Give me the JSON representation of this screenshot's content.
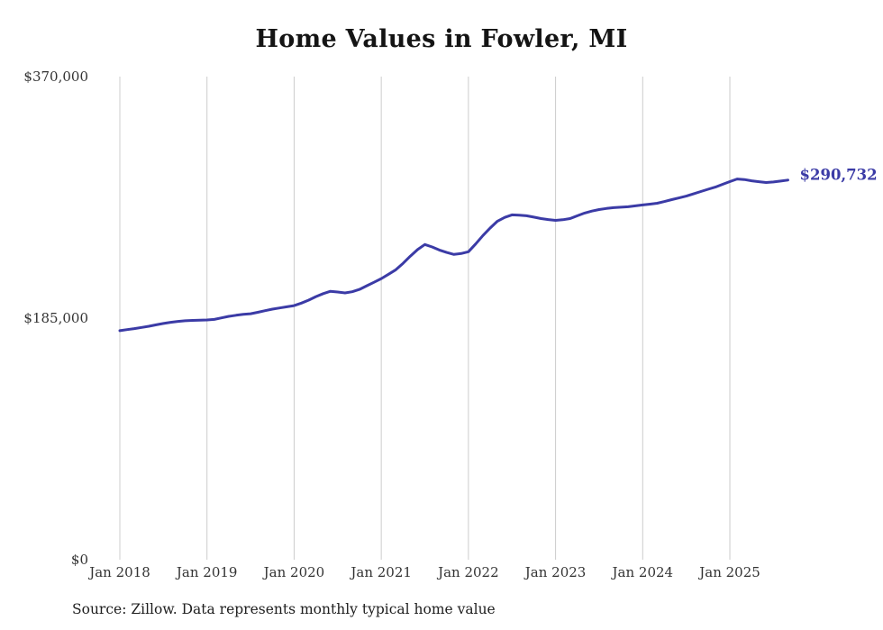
{
  "title": "Home Values in Fowler, MI",
  "source_note": "Source: Zillow. Data represents monthly typical home value",
  "end_label": "$290,732",
  "colors": {
    "line": "#3b3ba6",
    "grid": "#cccccc",
    "axis_text": "#333333",
    "title_text": "#141414"
  },
  "chart_data": {
    "type": "line",
    "title": "Home Values in Fowler, MI",
    "x_start": "2018-01",
    "x_end": "2025-09",
    "x_unit": "month",
    "ylim": [
      0,
      370000
    ],
    "grid": "vertical-only",
    "y_ticks": [
      {
        "value": 0,
        "label": "$0"
      },
      {
        "value": 185000,
        "label": "$185,000"
      },
      {
        "value": 370000,
        "label": "$370,000"
      }
    ],
    "x_ticks": [
      {
        "month_index": 0,
        "label": "Jan 2018"
      },
      {
        "month_index": 12,
        "label": "Jan 2019"
      },
      {
        "month_index": 24,
        "label": "Jan 2020"
      },
      {
        "month_index": 36,
        "label": "Jan 2021"
      },
      {
        "month_index": 48,
        "label": "Jan 2022"
      },
      {
        "month_index": 60,
        "label": "Jan 2023"
      },
      {
        "month_index": 72,
        "label": "Jan 2024"
      },
      {
        "month_index": 84,
        "label": "Jan 2025"
      }
    ],
    "series": [
      {
        "name": "Typical home value",
        "values": [
          175400,
          176200,
          177000,
          177900,
          178800,
          179900,
          180900,
          181800,
          182500,
          183000,
          183300,
          183400,
          183600,
          184000,
          185200,
          186400,
          187200,
          187900,
          188400,
          189500,
          190700,
          191900,
          192800,
          193700,
          194600,
          196500,
          198800,
          201500,
          203800,
          205600,
          205000,
          204300,
          205200,
          207000,
          209800,
          212500,
          215300,
          218600,
          222100,
          227000,
          232500,
          237500,
          241400,
          239500,
          237200,
          235300,
          233800,
          234500,
          235900,
          241800,
          248300,
          254000,
          259300,
          262200,
          264100,
          263900,
          263400,
          262400,
          261300,
          260500,
          259900,
          260400,
          261300,
          263400,
          265500,
          267000,
          268200,
          269000,
          269600,
          270000,
          270300,
          271000,
          271700,
          272300,
          273000,
          274300,
          275800,
          277100,
          278500,
          280200,
          282000,
          283700,
          285400,
          287500,
          289600,
          291600,
          291200,
          290200,
          289500,
          288900,
          289300,
          290000,
          290732
        ]
      }
    ],
    "final_value": 290732
  }
}
